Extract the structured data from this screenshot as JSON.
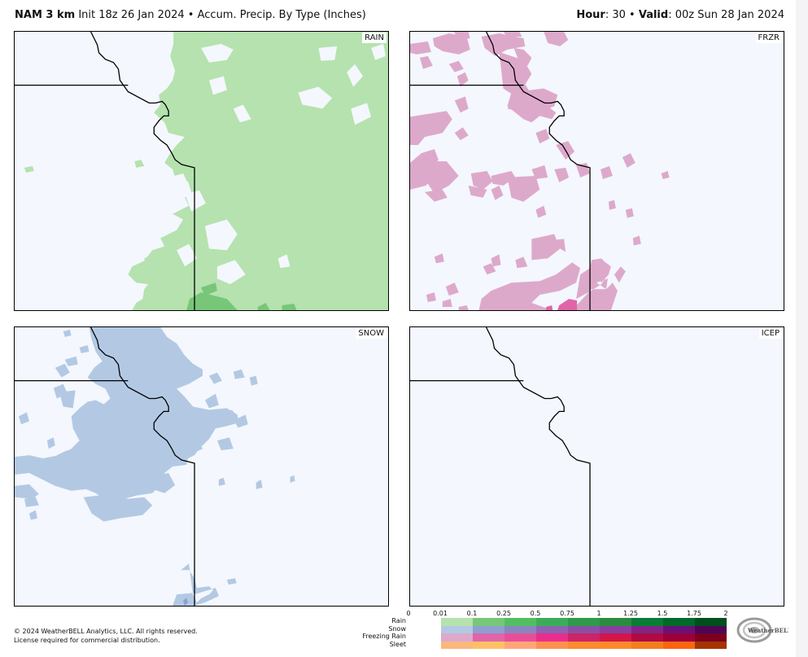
{
  "header": {
    "model": "NAM 3 km",
    "init": "Init 18z 26 Jan 2024",
    "separator": "•",
    "product": "Accum. Precip. By Type (Inches)",
    "hour_label": "Hour",
    "hour_value": ": 30",
    "valid_label": "Valid",
    "valid_value": ": 00z Sun 28 Jan 2024"
  },
  "panels": [
    {
      "id": "rain",
      "label": "RAIN",
      "fill": "#b5e2ae",
      "heavy": "#78c679"
    },
    {
      "id": "frzr",
      "label": "FRZR",
      "fill": "#dda9cb",
      "heavy": "#e065a8"
    },
    {
      "id": "snow",
      "label": "SNOW",
      "fill": "#b3c9e3",
      "heavy": "#8e9fd0"
    },
    {
      "id": "icep",
      "label": "ICEP",
      "fill": "#f9b886",
      "heavy": "#ffc066"
    }
  ],
  "map": {
    "background": "#f4f7fd",
    "border_color": "#000000"
  },
  "legend": {
    "ticks": [
      "0",
      "0.01",
      "0.1",
      "0.25",
      "0.5",
      "0.75",
      "1",
      "1.25",
      "1.5",
      "1.75",
      "2"
    ],
    "rows": [
      {
        "label": "Rain",
        "colors": [
          "#b5e2ae",
          "#78c679",
          "#52be62",
          "#3bad5a",
          "#2f9a4b",
          "#2a8c3e",
          "#097c37",
          "#006a2a",
          "#004f1d"
        ]
      },
      {
        "label": "Snow",
        "colors": [
          "#b3c9e3",
          "#8e9fd0",
          "#8b84c0",
          "#8d63b2",
          "#8b4fa3",
          "#883fa0",
          "#812684",
          "#6a1177",
          "#4f0556"
        ]
      },
      {
        "label": "Freezing Rain",
        "colors": [
          "#dda9cb",
          "#e065a8",
          "#e64f97",
          "#e92d8c",
          "#cb2468",
          "#d31548",
          "#ae0a43",
          "#9c003a",
          "#7c001f"
        ]
      },
      {
        "label": "Sleet",
        "colors": [
          "#fbb87c",
          "#ffc066",
          "#ffa678",
          "#fc9150",
          "#fc8a2e",
          "#fc8a2c",
          "#f47d20",
          "#fc6410",
          "#a63302"
        ]
      }
    ]
  },
  "footer": {
    "copyright": "© 2024 WeatherBELL Analytics, LLC. All rights reserved.",
    "license": "License required for commercial distribution."
  },
  "logo": {
    "text": "WeatherBELL"
  }
}
